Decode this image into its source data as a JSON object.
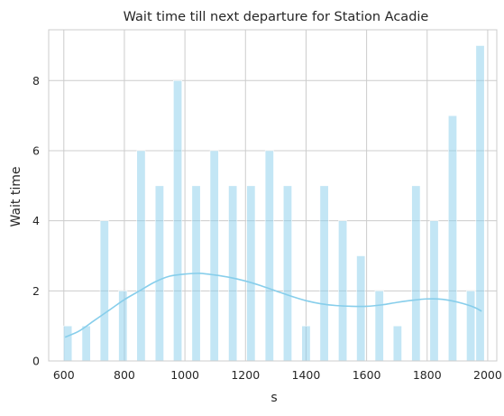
{
  "chart_data": {
    "type": "bar",
    "title": "Wait time till next departure for Station Acadie",
    "xlabel": "s",
    "ylabel": "Wait time",
    "xlim": [
      550,
      2030
    ],
    "ylim": [
      0,
      9.45
    ],
    "x_ticks": [
      600,
      800,
      1000,
      1200,
      1400,
      1600,
      1800,
      2000
    ],
    "y_ticks": [
      0,
      2,
      4,
      6,
      8
    ],
    "grid": true,
    "bar_width": 28,
    "bar_color": "#87ceeb",
    "series": [
      {
        "values": [
          {
            "x": 613,
            "y": 1
          },
          {
            "x": 674,
            "y": 1
          },
          {
            "x": 734,
            "y": 4
          },
          {
            "x": 795,
            "y": 2
          },
          {
            "x": 855,
            "y": 6
          },
          {
            "x": 916,
            "y": 5
          },
          {
            "x": 976,
            "y": 8
          },
          {
            "x": 1037,
            "y": 5
          },
          {
            "x": 1097,
            "y": 6
          },
          {
            "x": 1158,
            "y": 5
          },
          {
            "x": 1218,
            "y": 5
          },
          {
            "x": 1279,
            "y": 6
          },
          {
            "x": 1339,
            "y": 5
          },
          {
            "x": 1400,
            "y": 1
          },
          {
            "x": 1460,
            "y": 5
          },
          {
            "x": 1521,
            "y": 4
          },
          {
            "x": 1581,
            "y": 3
          },
          {
            "x": 1642,
            "y": 2
          },
          {
            "x": 1702,
            "y": 1
          },
          {
            "x": 1763,
            "y": 5
          },
          {
            "x": 1823,
            "y": 4
          },
          {
            "x": 1884,
            "y": 7
          },
          {
            "x": 1944,
            "y": 2
          },
          {
            "x": 1975,
            "y": 9
          }
        ]
      }
    ],
    "kde": {
      "color": "#87ceeb",
      "points": [
        [
          604,
          0.68
        ],
        [
          650,
          0.85
        ],
        [
          700,
          1.15
        ],
        [
          750,
          1.45
        ],
        [
          800,
          1.75
        ],
        [
          850,
          2.0
        ],
        [
          900,
          2.25
        ],
        [
          950,
          2.42
        ],
        [
          1000,
          2.48
        ],
        [
          1050,
          2.5
        ],
        [
          1100,
          2.45
        ],
        [
          1150,
          2.38
        ],
        [
          1200,
          2.28
        ],
        [
          1250,
          2.15
        ],
        [
          1300,
          2.0
        ],
        [
          1350,
          1.85
        ],
        [
          1400,
          1.72
        ],
        [
          1450,
          1.63
        ],
        [
          1500,
          1.58
        ],
        [
          1550,
          1.56
        ],
        [
          1600,
          1.56
        ],
        [
          1650,
          1.6
        ],
        [
          1700,
          1.67
        ],
        [
          1750,
          1.73
        ],
        [
          1800,
          1.77
        ],
        [
          1850,
          1.76
        ],
        [
          1900,
          1.68
        ],
        [
          1950,
          1.55
        ],
        [
          1980,
          1.42
        ]
      ]
    }
  }
}
